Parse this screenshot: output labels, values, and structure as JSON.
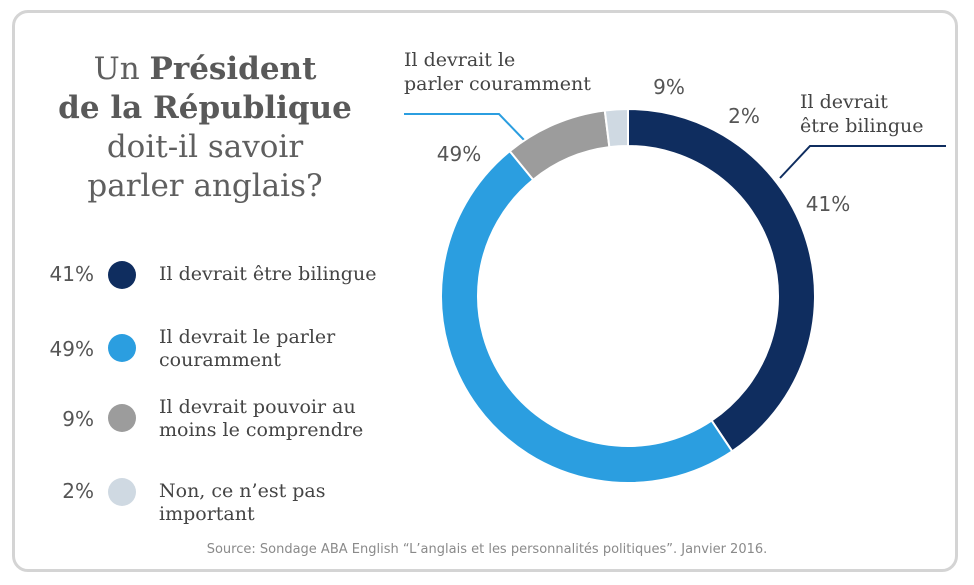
{
  "title": {
    "line1_normal": "Un ",
    "line1_bold": "Président",
    "line2_bold": "de la République",
    "line3": "doit-il savoir",
    "line4": "parler anglais?"
  },
  "legend": [
    {
      "pct": "41%",
      "label_line1": "Il devrait être bilingue",
      "label_line2": "",
      "color": "#0f2d5f"
    },
    {
      "pct": "49%",
      "label_line1": "Il devrait le parler",
      "label_line2": "couramment",
      "color": "#2b9ee0"
    },
    {
      "pct": "9%",
      "label_line1": "Il devrait pouvoir au",
      "label_line2": "moins le comprendre",
      "color": "#9c9c9c"
    },
    {
      "pct": "2%",
      "label_line1": "Non, ce n’est pas important",
      "label_line2": "",
      "color": "#cfd9e2"
    }
  ],
  "source": "Source: Sondage ABA English “L’anglais et les personnalités politiques”. Janvier 2016.",
  "chart_data": {
    "type": "pie",
    "style": "donut",
    "start": "top",
    "direction": "clockwise",
    "slices": [
      {
        "label": "Il devrait être bilingue",
        "value": 41,
        "value_label": "41%",
        "color": "#0f2d5f",
        "callout": [
          "Il devrait",
          "être bilingue"
        ]
      },
      {
        "label": "Il devrait le parler couramment",
        "value": 49,
        "value_label": "49%",
        "color": "#2b9ee0",
        "callout": [
          "Il devrait le",
          "parler couramment"
        ]
      },
      {
        "label": "Il devrait pouvoir au moins le comprendre",
        "value": 9,
        "value_label": "9%",
        "color": "#9c9c9c",
        "callout": []
      },
      {
        "label": "Non, ce n’est pas important",
        "value": 2,
        "value_label": "2%",
        "color": "#cfd9e2",
        "callout": []
      }
    ]
  }
}
